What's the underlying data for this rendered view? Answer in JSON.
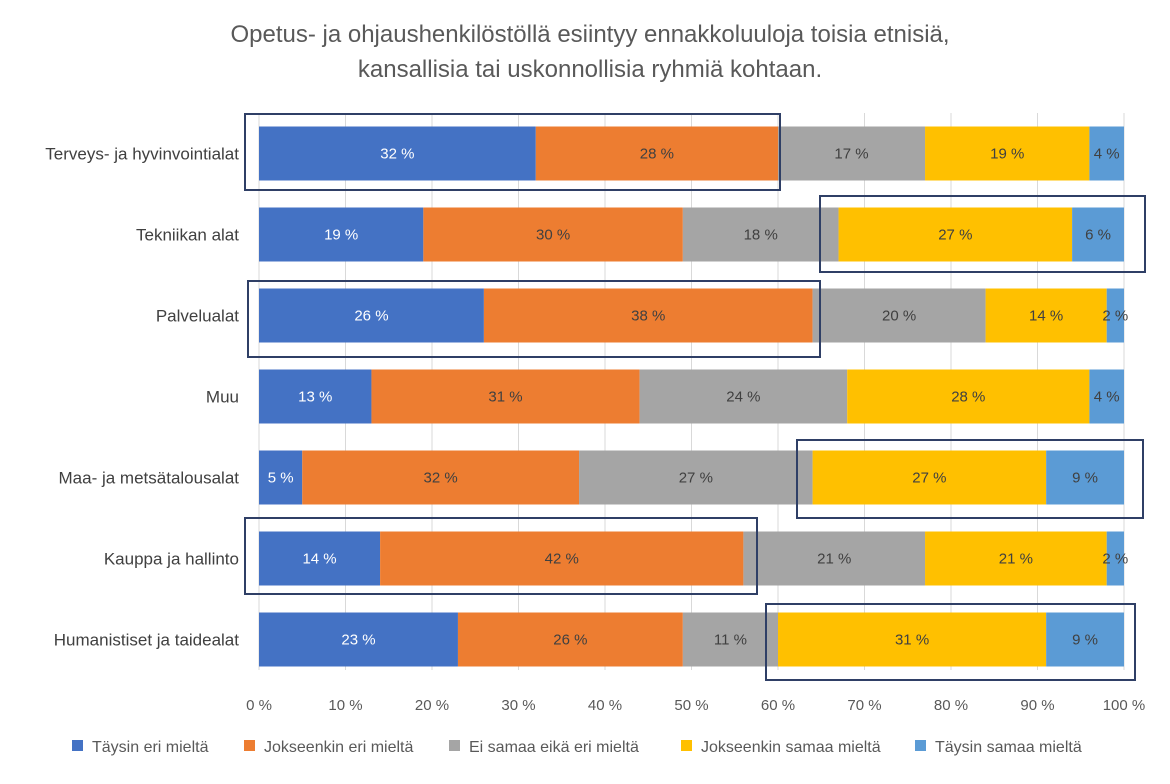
{
  "chart_data": {
    "type": "bar",
    "orientation": "horizontal",
    "stacked": true,
    "title": [
      "Opetus- ja ohjaushenkilöstöllä esiintyy ennakkoluuloja toisia etnisiä,",
      "kansallisia tai uskonnollisia ryhmiä kohtaan."
    ],
    "xlabel": "",
    "ylabel": "",
    "xlim": [
      0,
      100
    ],
    "x_ticks": [
      "0 %",
      "10 %",
      "20 %",
      "30 %",
      "40 %",
      "50 %",
      "60 %",
      "70 %",
      "80 %",
      "90 %",
      "100 %"
    ],
    "grid": true,
    "legend_position": "bottom",
    "categories": [
      "Terveys- ja hyvinvointialat",
      "Tekniikan alat",
      "Palvelualat",
      "Muu",
      "Maa- ja metsätalousalat",
      "Kauppa ja hallinto",
      "Humanistiset ja taidealat"
    ],
    "series": [
      {
        "name": "Täysin eri mieltä",
        "color": "#4472C4",
        "label_color": "#ffffff",
        "values": [
          32,
          19,
          26,
          13,
          5,
          14,
          23
        ]
      },
      {
        "name": "Jokseenkin eri mieltä",
        "color": "#ED7D31",
        "label_color": "#404040",
        "values": [
          28,
          30,
          38,
          31,
          32,
          42,
          26
        ]
      },
      {
        "name": "Ei samaa eikä eri mieltä",
        "color": "#A5A5A5",
        "label_color": "#404040",
        "values": [
          17,
          18,
          20,
          24,
          27,
          21,
          11
        ]
      },
      {
        "name": "Jokseenkin samaa mieltä",
        "color": "#FFC000",
        "label_color": "#404040",
        "values": [
          19,
          27,
          14,
          28,
          27,
          21,
          31
        ]
      },
      {
        "name": "Täysin samaa mieltä",
        "color": "#5B9BD5",
        "label_color": "#404040",
        "values": [
          4,
          6,
          2,
          4,
          9,
          2,
          9
        ]
      }
    ],
    "data_label_suffix": " %",
    "highlight_color": "#2F3F66"
  }
}
